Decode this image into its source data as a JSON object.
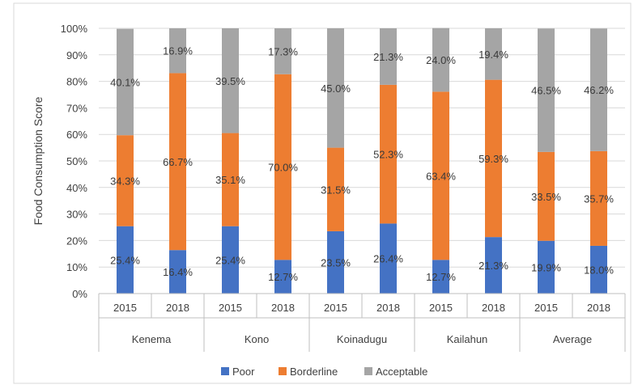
{
  "chart_data": {
    "type": "bar",
    "stacked": true,
    "ylabel": "Food Consumption Score",
    "ylim": [
      0,
      100
    ],
    "yticks": [
      "0%",
      "10%",
      "20%",
      "30%",
      "40%",
      "50%",
      "60%",
      "70%",
      "80%",
      "90%",
      "100%"
    ],
    "groups": [
      "Kenema",
      "Kono",
      "Koinadugu",
      "Kailahun",
      "Average"
    ],
    "categories": [
      "2015",
      "2018",
      "2015",
      "2018",
      "2015",
      "2018",
      "2015",
      "2018",
      "2015",
      "2018"
    ],
    "series": [
      {
        "name": "Poor",
        "color": "#4472c4",
        "values": [
          25.4,
          16.4,
          25.4,
          12.7,
          23.5,
          26.4,
          12.7,
          21.3,
          19.9,
          18.0
        ],
        "labels": [
          "25.4%",
          "16.4%",
          "25.4%",
          "12.7%",
          "23.5%",
          "26.4%",
          "12.7%",
          "21.3%",
          "19.9%",
          "18.0%"
        ]
      },
      {
        "name": "Borderline",
        "color": "#ed7d31",
        "values": [
          34.3,
          66.7,
          35.1,
          70.0,
          31.5,
          52.3,
          63.4,
          59.3,
          33.5,
          35.7
        ],
        "labels": [
          "34.3%",
          "66.7%",
          "35.1%",
          "70.0%",
          "31.5%",
          "52.3%",
          "63.4%",
          "59.3%",
          "33.5%",
          "35.7%"
        ]
      },
      {
        "name": "Acceptable",
        "color": "#a5a5a5",
        "values": [
          40.1,
          16.9,
          39.5,
          17.3,
          45.0,
          21.3,
          24.0,
          19.4,
          46.5,
          46.2
        ],
        "labels": [
          "40.1%",
          "16.9%",
          "39.5%",
          "17.3%",
          "45.0%",
          "21.3%",
          "24.0%",
          "19.4%",
          "46.5%",
          "46.2%"
        ]
      }
    ],
    "legend_position": "bottom",
    "grid": true
  }
}
